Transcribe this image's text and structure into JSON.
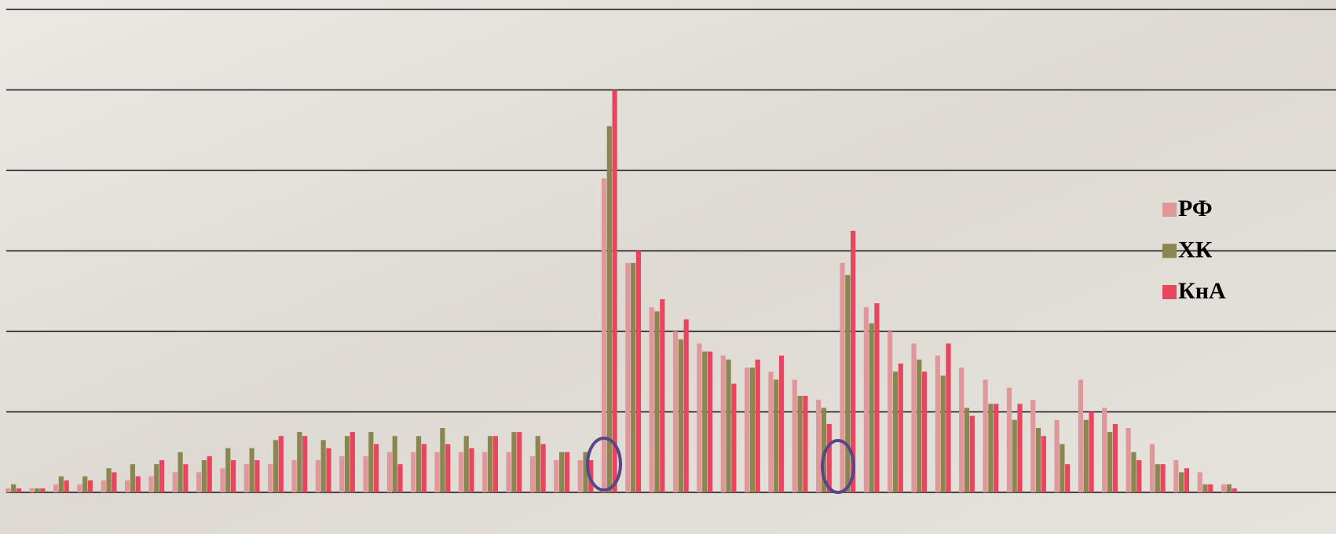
{
  "chart_data": {
    "type": "bar",
    "categories": [
      null,
      null,
      null,
      null,
      null,
      null,
      null,
      null,
      null,
      null,
      null,
      null,
      null,
      null,
      null,
      null,
      null,
      null,
      null,
      null,
      null,
      null,
      null,
      null,
      null,
      null,
      null,
      null,
      null,
      null,
      null,
      null,
      null,
      null,
      null,
      null,
      null,
      null,
      null,
      null,
      null,
      null,
      null,
      null,
      null,
      null,
      null,
      null,
      null,
      null,
      null,
      null
    ],
    "series": [
      {
        "name": "РФ",
        "color": "#e0979a",
        "values": [
          0.05,
          0.05,
          0.1,
          0.1,
          0.15,
          0.15,
          0.2,
          0.25,
          0.25,
          0.3,
          0.35,
          0.35,
          0.4,
          0.4,
          0.45,
          0.45,
          0.5,
          0.5,
          0.5,
          0.5,
          0.5,
          0.5,
          0.45,
          0.4,
          0.4,
          3.9,
          2.85,
          2.3,
          2.0,
          1.85,
          1.7,
          1.55,
          1.5,
          1.4,
          1.15,
          2.85,
          2.3,
          2.0,
          1.85,
          1.7,
          1.55,
          1.4,
          1.3,
          1.15,
          0.9,
          1.4,
          1.05,
          0.8,
          0.6,
          0.4,
          0.25,
          0.1
        ]
      },
      {
        "name": "ХК",
        "color": "#8b8550",
        "values": [
          0.1,
          0.05,
          0.2,
          0.2,
          0.3,
          0.35,
          0.35,
          0.5,
          0.4,
          0.55,
          0.55,
          0.65,
          0.75,
          0.65,
          0.7,
          0.75,
          0.7,
          0.7,
          0.8,
          0.7,
          0.7,
          0.75,
          0.7,
          0.5,
          0.5,
          4.55,
          2.85,
          2.25,
          1.9,
          1.75,
          1.65,
          1.55,
          1.4,
          1.2,
          1.05,
          2.7,
          2.1,
          1.5,
          1.65,
          1.45,
          1.05,
          1.1,
          0.9,
          0.8,
          0.6,
          0.9,
          0.75,
          0.5,
          0.35,
          0.25,
          0.1,
          0.1
        ]
      },
      {
        "name": "КнА",
        "color": "#e8455f",
        "values": [
          0.05,
          0.05,
          0.15,
          0.15,
          0.25,
          0.2,
          0.4,
          0.35,
          0.45,
          0.4,
          0.4,
          0.7,
          0.7,
          0.55,
          0.75,
          0.6,
          0.35,
          0.6,
          0.6,
          0.55,
          0.7,
          0.75,
          0.6,
          0.5,
          0.4,
          5.0,
          3.0,
          2.4,
          2.15,
          1.75,
          1.35,
          1.65,
          1.7,
          1.2,
          0.85,
          3.25,
          2.35,
          1.6,
          1.5,
          1.85,
          0.95,
          1.1,
          1.1,
          0.7,
          0.35,
          1.0,
          0.85,
          0.4,
          0.35,
          0.3,
          0.1,
          0.05
        ]
      }
    ],
    "ylim": [
      0,
      6
    ],
    "yticks": [
      0,
      1,
      2,
      3,
      4,
      5,
      6
    ],
    "grid": true,
    "legend": "right"
  }
}
